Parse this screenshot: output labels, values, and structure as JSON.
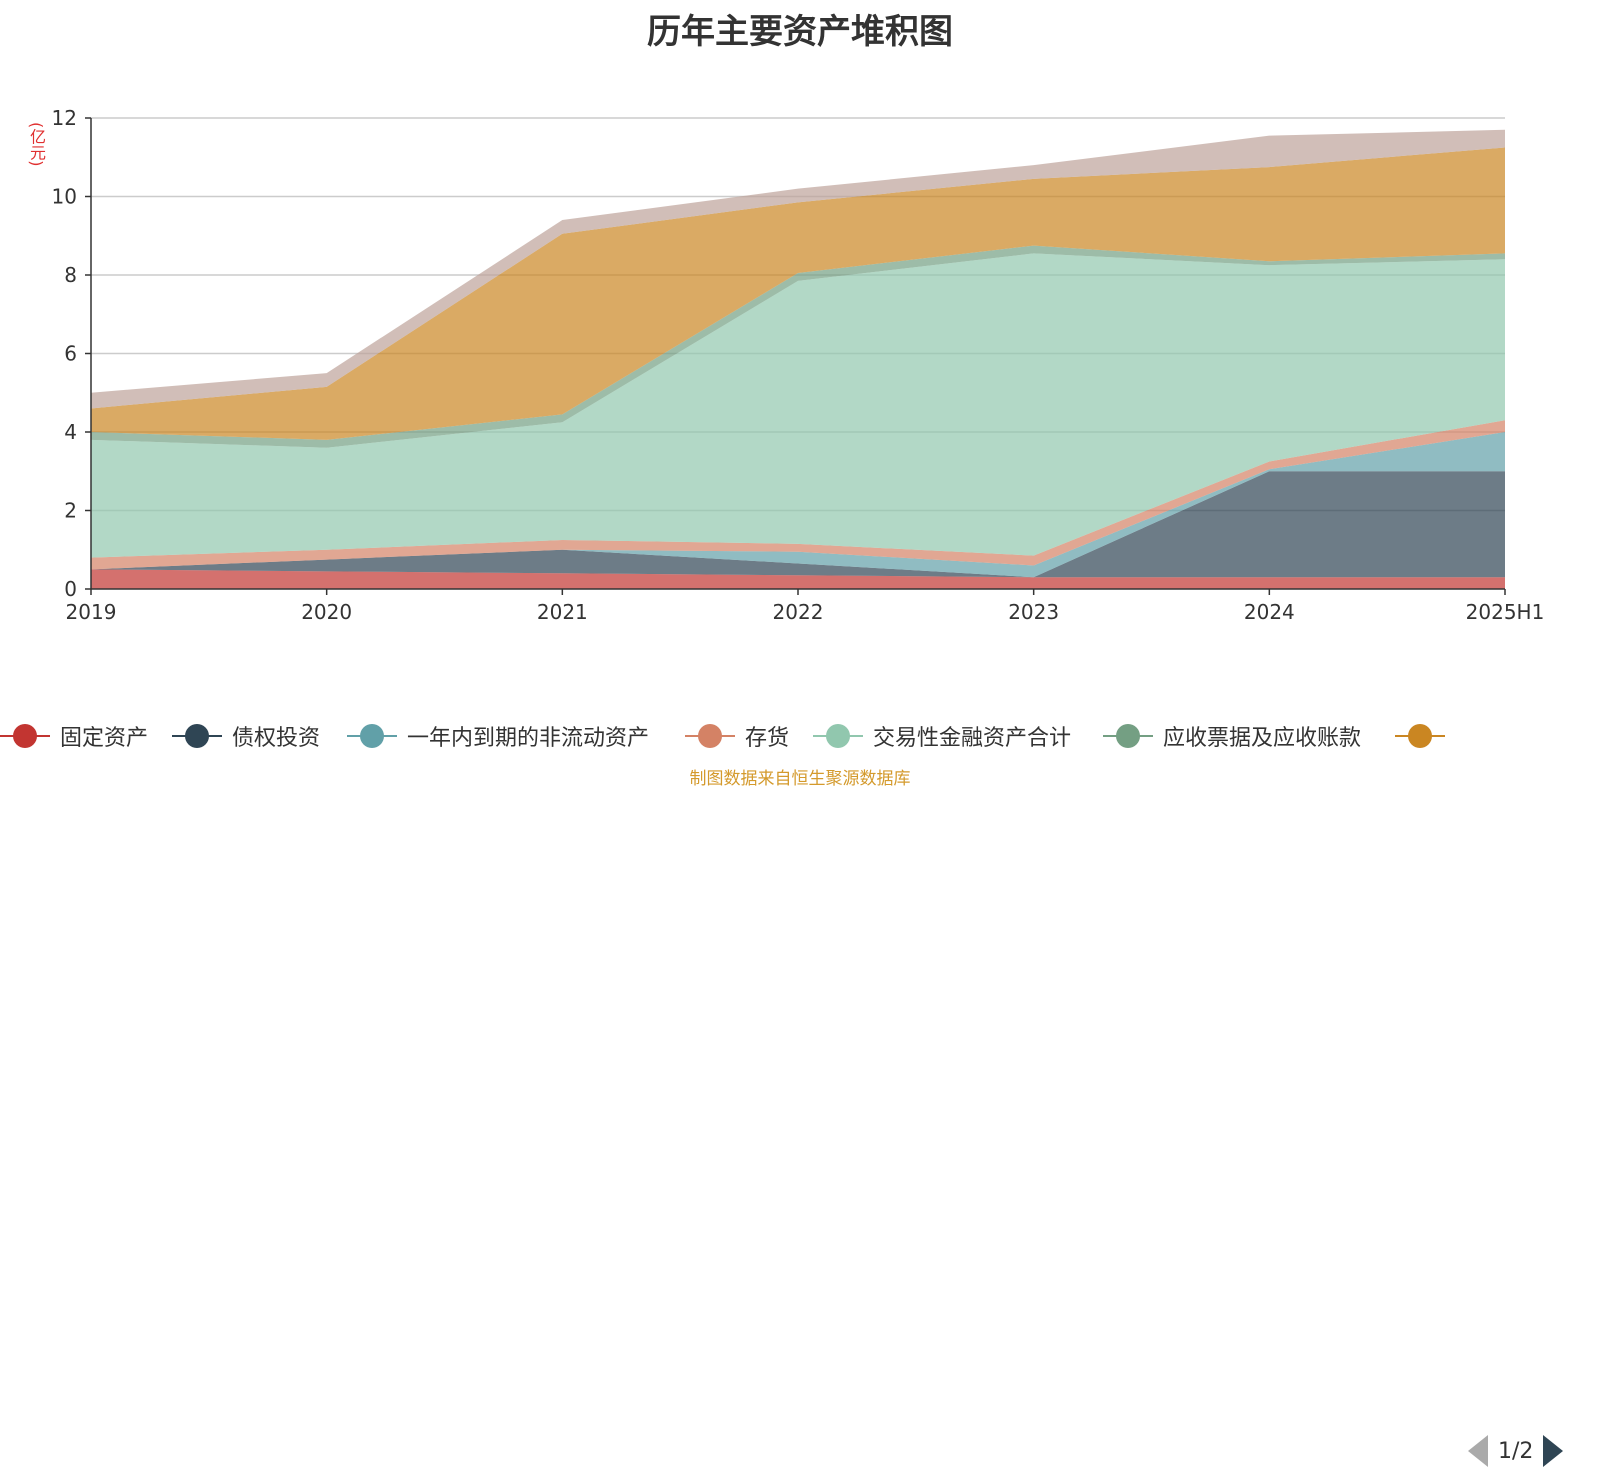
{
  "chart_data": {
    "type": "area",
    "stacked": true,
    "title": "历年主要资产堆积图",
    "ylabel": "(亿元)",
    "categories": [
      "2019",
      "2020",
      "2021",
      "2022",
      "2023",
      "2024",
      "2025H1"
    ],
    "ylim": [
      0,
      12
    ],
    "yticks": [
      "0",
      "2",
      "4",
      "6",
      "8",
      "10",
      "12"
    ],
    "grid": true,
    "series": [
      {
        "name": "固定资产",
        "color": "#c23531",
        "values": [
          0.5,
          0.45,
          0.4,
          0.35,
          0.3,
          0.3,
          0.3
        ]
      },
      {
        "name": "债权投资",
        "color": "#2f4554",
        "values": [
          0.0,
          0.3,
          0.6,
          0.3,
          0.0,
          2.7,
          2.7
        ]
      },
      {
        "name": "一年内到期的非流动资产",
        "color": "#61a0a8",
        "values": [
          0.0,
          0.0,
          0.0,
          0.3,
          0.3,
          0.05,
          1.0
        ]
      },
      {
        "name": "存货",
        "color": "#d48265",
        "values": [
          0.3,
          0.25,
          0.25,
          0.2,
          0.25,
          0.2,
          0.3
        ]
      },
      {
        "name": "交易性金融资产合计",
        "color": "#91c7ae",
        "values": [
          3.0,
          2.6,
          3.0,
          6.7,
          7.7,
          5.0,
          4.1
        ]
      },
      {
        "name": "应收票据及应收账款",
        "color": "#749f83",
        "values": [
          0.2,
          0.2,
          0.2,
          0.2,
          0.2,
          0.1,
          0.15
        ]
      },
      {
        "name": "",
        "color": "#ca8622",
        "values": [
          0.6,
          1.35,
          4.6,
          1.8,
          1.7,
          2.4,
          2.7
        ]
      },
      {
        "name": "",
        "color": "#bda29a",
        "values": [
          0.4,
          0.35,
          0.35,
          0.35,
          0.35,
          0.8,
          0.45
        ]
      }
    ]
  },
  "legend": {
    "items": [
      {
        "label": "固定资产",
        "color": "#c23531"
      },
      {
        "label": "债权投资",
        "color": "#2f4554"
      },
      {
        "label": "一年内到期的非流动资产",
        "color": "#61a0a8"
      },
      {
        "label": "存货",
        "color": "#d48265"
      },
      {
        "label": "交易性金融资产合计",
        "color": "#91c7ae"
      },
      {
        "label": "应收票据及应收账款",
        "color": "#749f83"
      },
      {
        "label": "",
        "color": "#ca8622"
      }
    ],
    "pager": "1/2"
  },
  "source_note": "制图数据来自恒生聚源数据库"
}
